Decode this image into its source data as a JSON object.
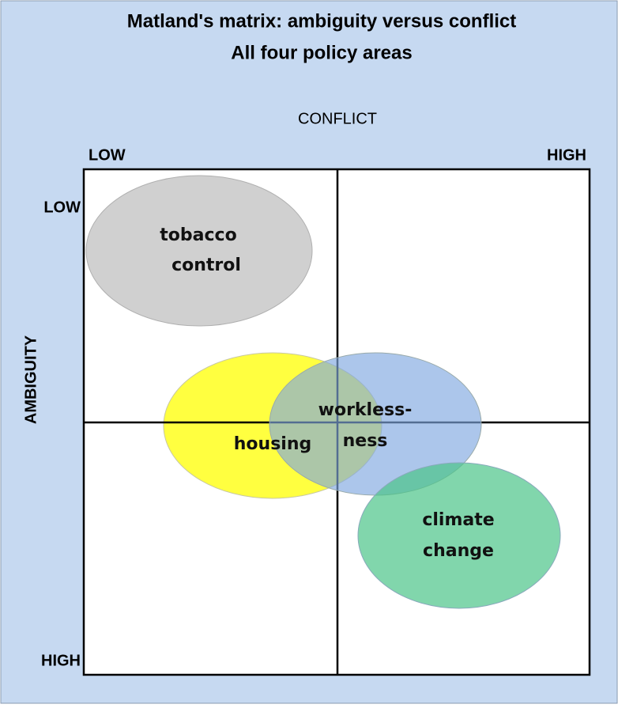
{
  "title": [
    "Matland's matrix: ambiguity versus conflict",
    "All four policy areas"
  ],
  "x_axis": {
    "label": "CONFLICT",
    "low": "LOW",
    "high": "HIGH"
  },
  "y_axis": {
    "label": "AMBIGUITY",
    "low": "LOW",
    "high": "HIGH"
  },
  "areas": [
    {
      "lines": [
        "tobacco",
        "control"
      ]
    },
    {
      "lines": [
        "housing"
      ]
    },
    {
      "lines": [
        "workless-",
        "ness"
      ]
    },
    {
      "lines": [
        "climate",
        "change"
      ]
    }
  ]
}
